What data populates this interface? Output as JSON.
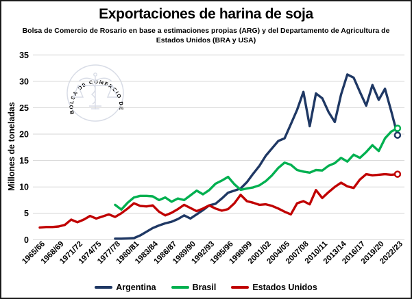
{
  "header": {
    "title": "Exportaciones de harina de soja",
    "subtitle": "Bolsa de Comercio de Rosario en base a estimaciones propias (ARG) y del Departamento de Agricultura de Estados Unidos (BRA y USA)"
  },
  "watermark": {
    "text": "BOLSA DE COMERCIO DE ROSARIO"
  },
  "colors": {
    "argentina": "#1f3864",
    "brasil": "#00b050",
    "estados_unidos": "#c00000",
    "grid": "#d6d6d6",
    "watermark": "#d8dce6"
  },
  "chart_data": {
    "type": "line",
    "title": "Exportaciones de harina de soja",
    "xlabel": "",
    "ylabel": "Millones de toneladas",
    "ylim": [
      0,
      35
    ],
    "ytick_step": 5,
    "grid": true,
    "legend_position": "bottom",
    "xtick_every": 3,
    "categories": [
      "1965/66",
      "1966/67",
      "1967/68",
      "1968/69",
      "1969/70",
      "1970/71",
      "1971/72",
      "1972/73",
      "1973/74",
      "1974/75",
      "1975/76",
      "1976/77",
      "1977/78",
      "1978/79",
      "1979/80",
      "1980/81",
      "1981/82",
      "1982/83",
      "1983/84",
      "1984/85",
      "1985/86",
      "1986/87",
      "1987/88",
      "1988/89",
      "1989/90",
      "1990/91",
      "1991/92",
      "1992/93",
      "1993/94",
      "1994/95",
      "1995/96",
      "1996/97",
      "1997/98",
      "1998/99",
      "1999/00",
      "2000/01",
      "2001/02",
      "2002/03",
      "2003/04",
      "2004/05",
      "2005/06",
      "2006/07",
      "2007/08",
      "2008/09",
      "2009/10",
      "2010/11",
      "2011/12",
      "2012/13",
      "2013/14",
      "2014/15",
      "2015/16",
      "2016/17",
      "2017/18",
      "2018/19",
      "2019/20",
      "2020/21",
      "2021/22",
      "2022/23"
    ],
    "series": [
      {
        "name": "Argentina",
        "color": "#1f3864",
        "end_marker": true,
        "values": [
          null,
          null,
          null,
          null,
          null,
          null,
          null,
          null,
          null,
          null,
          null,
          null,
          0.2,
          0.2,
          0.25,
          0.3,
          0.8,
          1.5,
          2.2,
          2.7,
          3.1,
          3.4,
          3.9,
          4.6,
          4.0,
          4.8,
          5.6,
          6.5,
          6.8,
          7.8,
          8.9,
          9.3,
          9.7,
          10.9,
          12.5,
          14.0,
          15.9,
          17.3,
          18.7,
          19.2,
          21.9,
          24.6,
          28.0,
          21.5,
          27.7,
          26.8,
          24.2,
          22.3,
          27.5,
          31.3,
          30.7,
          28.0,
          25.4,
          29.3,
          26.5,
          28.6,
          24.3,
          19.8
        ]
      },
      {
        "name": "Brasil",
        "color": "#00b050",
        "end_marker": true,
        "values": [
          null,
          null,
          null,
          null,
          null,
          null,
          null,
          null,
          null,
          null,
          null,
          null,
          6.6,
          5.7,
          7.0,
          8.0,
          8.3,
          8.3,
          8.2,
          7.5,
          8.0,
          7.2,
          7.8,
          7.5,
          8.4,
          9.3,
          8.6,
          9.4,
          10.6,
          11.2,
          11.9,
          10.5,
          9.45,
          9.7,
          9.9,
          10.3,
          11.1,
          12.2,
          13.6,
          14.6,
          14.2,
          13.2,
          12.9,
          12.7,
          13.2,
          13.1,
          14.0,
          14.5,
          15.5,
          14.8,
          16.1,
          15.5,
          16.6,
          17.9,
          16.8,
          19.2,
          20.5,
          21.1
        ]
      },
      {
        "name": "Estados Unidos",
        "color": "#c00000",
        "end_marker": true,
        "values": [
          2.3,
          2.4,
          2.4,
          2.5,
          2.8,
          3.8,
          3.3,
          3.8,
          4.5,
          4.0,
          4.4,
          4.8,
          4.3,
          5.0,
          5.9,
          6.9,
          6.4,
          6.3,
          6.5,
          5.3,
          4.6,
          5.1,
          5.8,
          6.6,
          6.0,
          5.4,
          5.9,
          6.5,
          5.9,
          5.5,
          5.8,
          6.9,
          8.5,
          7.3,
          7.0,
          6.6,
          6.7,
          6.4,
          5.9,
          5.3,
          4.8,
          6.9,
          7.3,
          6.7,
          9.4,
          7.9,
          9.0,
          10.0,
          10.8,
          10.1,
          9.8,
          11.4,
          12.4,
          12.2,
          12.3,
          12.4,
          12.3,
          12.4
        ]
      }
    ]
  }
}
